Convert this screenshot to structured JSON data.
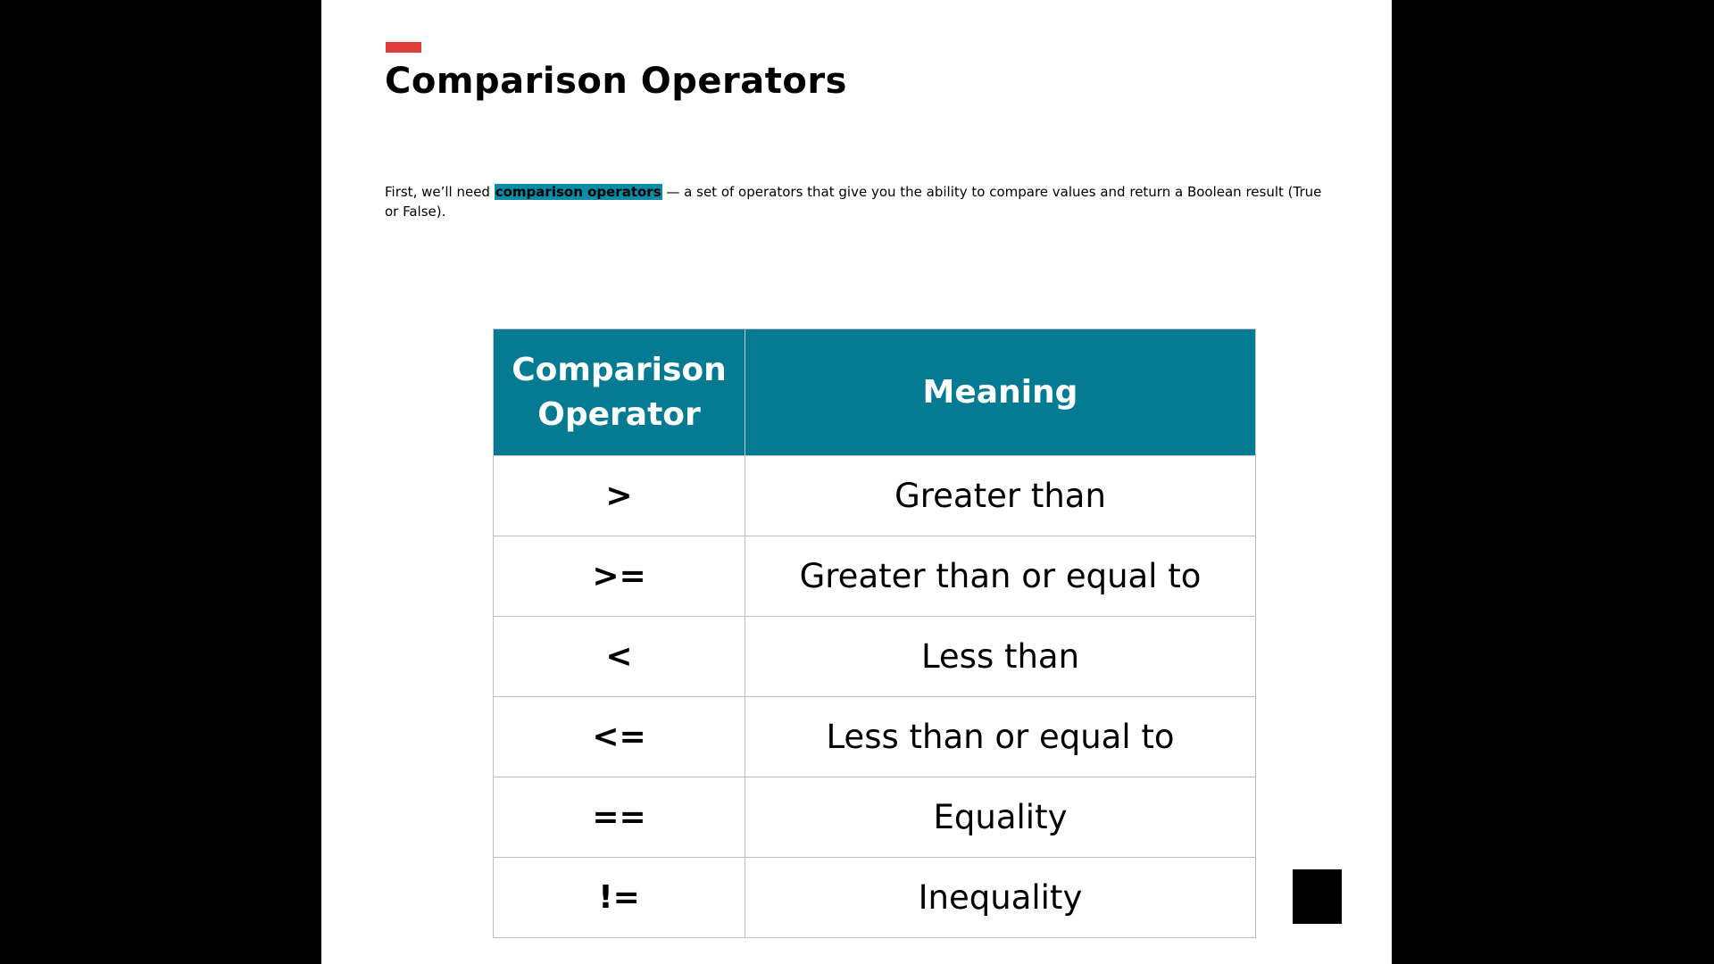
{
  "slide": {
    "title": "Comparison Operators",
    "intro": {
      "before": "First, we’ll need ",
      "highlight": "comparison operators",
      "after": " — a set of operators that give you the ability to compare values and return a Boolean result (True or False)."
    },
    "table": {
      "headers": [
        "Comparison Operator",
        "Meaning"
      ],
      "rows": [
        {
          "operator": ">",
          "meaning": "Greater than"
        },
        {
          "operator": ">=",
          "meaning": "Greater than or equal to"
        },
        {
          "operator": "<",
          "meaning": "Less than"
        },
        {
          "operator": "<=",
          "meaning": "Less than or equal to"
        },
        {
          "operator": "==",
          "meaning": "Equality"
        },
        {
          "operator": "!=",
          "meaning": "Inequality"
        }
      ]
    }
  },
  "colors": {
    "accent_red": "#e03c3c",
    "header_teal": "#047b92",
    "highlight_teal": "#0a8ca6"
  }
}
